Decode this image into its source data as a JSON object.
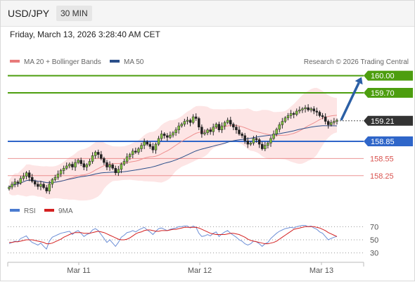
{
  "header": {
    "pair": "USD/JPY",
    "timeframe": "30 MIN"
  },
  "datetime": "Friday, March 13, 2026 3:28:40 AM CET",
  "legend": {
    "ma_bb": "MA 20 + Bollinger Bands",
    "ma50": "MA 50",
    "credit": "Research © 2026 Trading Central"
  },
  "rsi_legend": {
    "rsi": "RSI",
    "ma9": "9MA"
  },
  "colors": {
    "green": "#4d9e0f",
    "blue": "#2f66c9",
    "red": "#e87a7a",
    "current": "#333333",
    "bb_fill": "#fde0e0",
    "arrow": "#2b5fa5"
  },
  "chart_data": {
    "type": "candlestick",
    "symbol": "USD/JPY",
    "price_range": [
      157.89,
      160.13
    ],
    "x_ticks": [
      "Mar 11",
      "Mar 12",
      "Mar 13"
    ],
    "levels": [
      {
        "value": 160.0,
        "label": "160.00",
        "role": "target",
        "style": "green-box"
      },
      {
        "value": 159.7,
        "label": "159.70",
        "role": "target",
        "style": "green-box"
      },
      {
        "value": 159.21,
        "label": "159.21",
        "role": "current",
        "style": "dark-box"
      },
      {
        "value": 158.85,
        "label": "158.85",
        "role": "pivot",
        "style": "blue-box"
      },
      {
        "value": 158.55,
        "label": "158.55",
        "role": "support",
        "style": "red-text"
      },
      {
        "value": 158.25,
        "label": "158.25",
        "role": "support",
        "style": "red-text"
      }
    ],
    "close_series": [
      158.05,
      158.1,
      158.14,
      158.12,
      158.2,
      158.24,
      158.3,
      158.22,
      158.15,
      158.1,
      158.06,
      158.1,
      158.04,
      157.98,
      158.1,
      158.18,
      158.22,
      158.28,
      158.34,
      158.38,
      158.42,
      158.45,
      158.4,
      158.48,
      158.52,
      158.46,
      158.4,
      158.44,
      158.5,
      158.6,
      158.66,
      158.62,
      158.55,
      158.48,
      158.4,
      158.44,
      158.38,
      158.3,
      158.36,
      158.45,
      158.5,
      158.58,
      158.62,
      158.68,
      158.66,
      158.72,
      158.78,
      158.84,
      158.8,
      158.76,
      158.7,
      158.8,
      158.9,
      158.98,
      158.95,
      158.92,
      158.96,
      159.0,
      159.05,
      159.12,
      159.15,
      159.2,
      159.22,
      159.18,
      159.28,
      159.25,
      159.1,
      158.98,
      159.0,
      159.05,
      159.02,
      159.1,
      159.15,
      159.05,
      159.12,
      159.18,
      159.22,
      159.15,
      159.1,
      159.05,
      158.98,
      158.95,
      158.86,
      158.8,
      158.82,
      158.9,
      158.88,
      158.8,
      158.72,
      158.78,
      158.82,
      158.9,
      158.98,
      159.06,
      159.14,
      159.2,
      159.26,
      159.3,
      159.34,
      159.32,
      159.38,
      159.4,
      159.42,
      159.44,
      159.4,
      159.42,
      159.38,
      159.36,
      159.3,
      159.28,
      159.2,
      159.14,
      159.18,
      159.2,
      159.22
    ],
    "rsi": {
      "ticks": [
        70,
        50,
        30
      ],
      "range": [
        20,
        80
      ],
      "values": [
        44,
        46,
        48,
        47,
        52,
        54,
        56,
        50,
        46,
        44,
        42,
        45,
        40,
        36,
        48,
        54,
        56,
        58,
        60,
        61,
        62,
        63,
        58,
        62,
        64,
        60,
        55,
        58,
        60,
        65,
        67,
        64,
        58,
        52,
        46,
        50,
        45,
        40,
        46,
        54,
        57,
        61,
        62,
        64,
        62,
        65,
        67,
        69,
        65,
        62,
        58,
        63,
        67,
        68,
        66,
        64,
        66,
        67,
        68,
        70,
        70,
        71,
        71,
        68,
        71,
        69,
        60,
        55,
        56,
        58,
        56,
        60,
        62,
        55,
        59,
        62,
        64,
        60,
        57,
        54,
        50,
        48,
        44,
        42,
        44,
        48,
        47,
        44,
        40,
        44,
        46,
        52,
        56,
        60,
        63,
        65,
        67,
        68,
        69,
        68,
        70,
        71,
        72,
        72,
        70,
        71,
        68,
        66,
        62,
        60,
        55,
        50,
        52,
        54,
        55
      ],
      "ma9": [
        46,
        46,
        47,
        47,
        48,
        49,
        50,
        50,
        50,
        49,
        48,
        47,
        46,
        44,
        44,
        45,
        47,
        49,
        51,
        54,
        56,
        58,
        60,
        61,
        61,
        61,
        60,
        60,
        60,
        61,
        62,
        63,
        62,
        61,
        59,
        57,
        55,
        53,
        51,
        50,
        50,
        51,
        53,
        56,
        59,
        61,
        62,
        64,
        65,
        65,
        64,
        63,
        63,
        64,
        64,
        64,
        65,
        66,
        66,
        67,
        68,
        69,
        69,
        69,
        69,
        69,
        68,
        66,
        64,
        62,
        60,
        59,
        58,
        58,
        58,
        58,
        59,
        60,
        60,
        59,
        58,
        56,
        54,
        51,
        49,
        48,
        47,
        46,
        45,
        44,
        44,
        45,
        46,
        48,
        51,
        54,
        57,
        60,
        63,
        66,
        67,
        68,
        69,
        70,
        70,
        70,
        70,
        69,
        68,
        66,
        64,
        61,
        59,
        57,
        55
      ]
    }
  }
}
